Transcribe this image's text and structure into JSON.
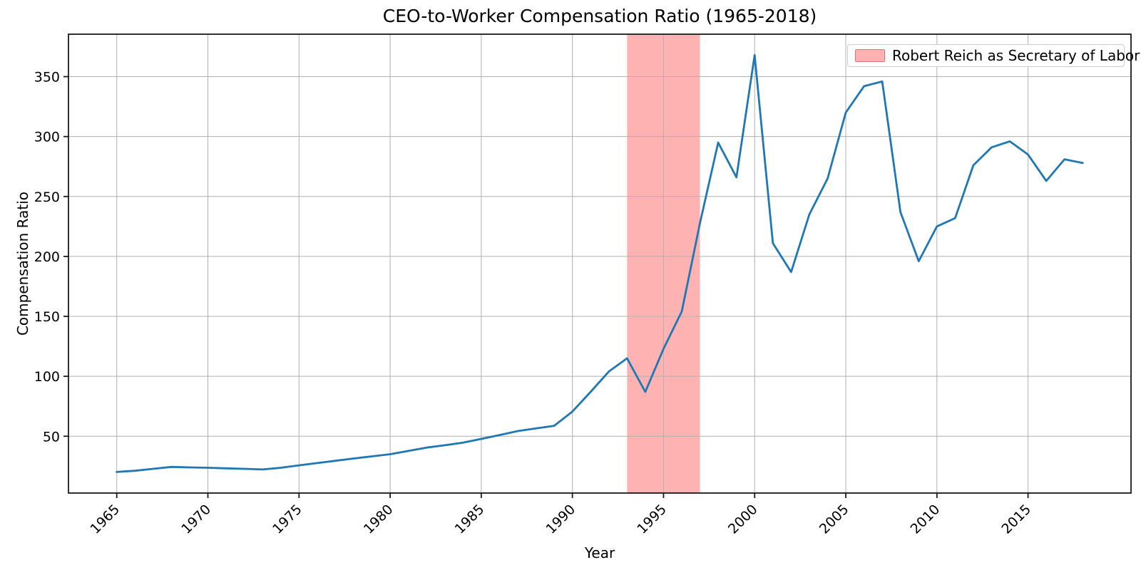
{
  "figure": {
    "title": "CEO-to-Worker Compensation Ratio (1965-2018)",
    "xlabel": "Year",
    "ylabel": "Compensation Ratio",
    "legend_label": "Robert Reich as Secretary of Labor"
  },
  "chart_data": {
    "type": "line",
    "title": "CEO-to-Worker Compensation Ratio (1965-2018)",
    "xlabel": "Year",
    "ylabel": "Compensation Ratio",
    "grid": true,
    "legend_position": "upper right",
    "xlim": [
      1962.35,
      2020.65
    ],
    "ylim": [
      2.6,
      385.4
    ],
    "xticks": [
      1965,
      1970,
      1975,
      1980,
      1985,
      1990,
      1995,
      2000,
      2005,
      2010,
      2015
    ],
    "yticks": [
      50,
      100,
      150,
      200,
      250,
      300,
      350
    ],
    "x": [
      1965,
      1966,
      1967,
      1968,
      1969,
      1970,
      1971,
      1972,
      1973,
      1974,
      1975,
      1976,
      1977,
      1978,
      1979,
      1980,
      1981,
      1982,
      1983,
      1984,
      1985,
      1986,
      1987,
      1988,
      1989,
      1990,
      1991,
      1992,
      1993,
      1994,
      1995,
      1996,
      1997,
      1998,
      1999,
      2000,
      2001,
      2002,
      2003,
      2004,
      2005,
      2006,
      2007,
      2008,
      2009,
      2010,
      2011,
      2012,
      2013,
      2014,
      2015,
      2016,
      2017,
      2018
    ],
    "series": [
      {
        "name": "CEO-to-worker compensation ratio",
        "color": "#1f77b4",
        "values": [
          20.2,
          21.2,
          22.8,
          24.4,
          24.0,
          23.7,
          23.2,
          22.8,
          22.3,
          23.7,
          25.7,
          27.6,
          29.5,
          31.4,
          33.2,
          35.0,
          37.7,
          40.5,
          42.5,
          44.6,
          47.8,
          51.0,
          54.3,
          56.5,
          58.7,
          70.6,
          87.0,
          104.0,
          115.0,
          87.0,
          123.0,
          154.0,
          228.0,
          295.0,
          266.0,
          368.0,
          211.0,
          187.0,
          235.0,
          265.0,
          320.0,
          342.0,
          346.0,
          237.0,
          196.0,
          225.0,
          232.0,
          276.0,
          291.0,
          296.0,
          285.0,
          263.0,
          281.0,
          278.0
        ]
      }
    ],
    "annotations": [
      {
        "type": "axvspan",
        "x0": 1993,
        "x1": 1997,
        "color": "#ff0000",
        "opacity": 0.3,
        "label": "Robert Reich as Secretary of Labor"
      }
    ],
    "colors": {
      "line": "#1f77b4",
      "grid": "#b0b0b0",
      "spine": "#1a1a1a",
      "span_fill": "rgba(255,0,0,0.3)",
      "background": "#ffffff"
    }
  }
}
